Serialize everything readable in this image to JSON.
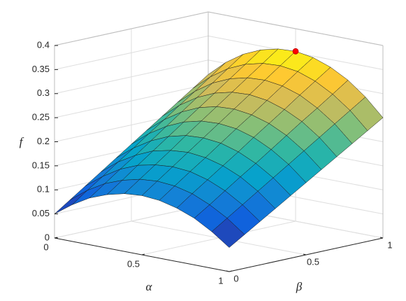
{
  "chart_data": {
    "type": "surface",
    "xlabel": "α",
    "ylabel": "β",
    "zlabel": "f",
    "x": [
      0,
      0.1,
      0.2,
      0.3,
      0.4,
      0.5,
      0.6,
      0.7,
      0.8,
      0.9,
      1
    ],
    "y": [
      0,
      0.1,
      0.2,
      0.3,
      0.4,
      0.5,
      0.6,
      0.7,
      0.8,
      0.9,
      1
    ],
    "z": [
      [
        0.05,
        0.076,
        0.097,
        0.111,
        0.12,
        0.123,
        0.12,
        0.111,
        0.097,
        0.076,
        0.05
      ],
      [
        0.072,
        0.099,
        0.12,
        0.134,
        0.143,
        0.146,
        0.143,
        0.134,
        0.118,
        0.097,
        0.07
      ],
      [
        0.094,
        0.121,
        0.143,
        0.158,
        0.166,
        0.169,
        0.166,
        0.156,
        0.14,
        0.118,
        0.09
      ],
      [
        0.116,
        0.144,
        0.165,
        0.181,
        0.189,
        0.192,
        0.188,
        0.178,
        0.162,
        0.139,
        0.11
      ],
      [
        0.138,
        0.166,
        0.188,
        0.204,
        0.213,
        0.215,
        0.211,
        0.2,
        0.183,
        0.16,
        0.13
      ],
      [
        0.16,
        0.189,
        0.211,
        0.227,
        0.236,
        0.238,
        0.234,
        0.223,
        0.205,
        0.181,
        0.15
      ],
      [
        0.182,
        0.211,
        0.234,
        0.25,
        0.259,
        0.261,
        0.256,
        0.245,
        0.227,
        0.202,
        0.17
      ],
      [
        0.204,
        0.234,
        0.257,
        0.273,
        0.282,
        0.284,
        0.279,
        0.267,
        0.249,
        0.223,
        0.19
      ],
      [
        0.226,
        0.256,
        0.28,
        0.296,
        0.305,
        0.307,
        0.302,
        0.29,
        0.27,
        0.244,
        0.21
      ],
      [
        0.248,
        0.279,
        0.303,
        0.319,
        0.328,
        0.33,
        0.325,
        0.312,
        0.292,
        0.265,
        0.23
      ],
      [
        0.27,
        0.302,
        0.326,
        0.342,
        0.351,
        0.353,
        0.347,
        0.334,
        0.314,
        0.286,
        0.25
      ]
    ],
    "peak": {
      "x": 0.5,
      "y": 1,
      "z": 0.353,
      "color": "#ff0000"
    },
    "xlim": [
      0,
      1
    ],
    "ylim": [
      0,
      1
    ],
    "zlim": [
      0,
      0.4
    ],
    "xticks": [
      0,
      0.5,
      1
    ],
    "yticks": [
      0,
      0.5,
      1
    ],
    "zticks": [
      0,
      0.05,
      0.1,
      0.15,
      0.2,
      0.25,
      0.3,
      0.35,
      0.4
    ],
    "grid": true,
    "colormap": "parula"
  }
}
